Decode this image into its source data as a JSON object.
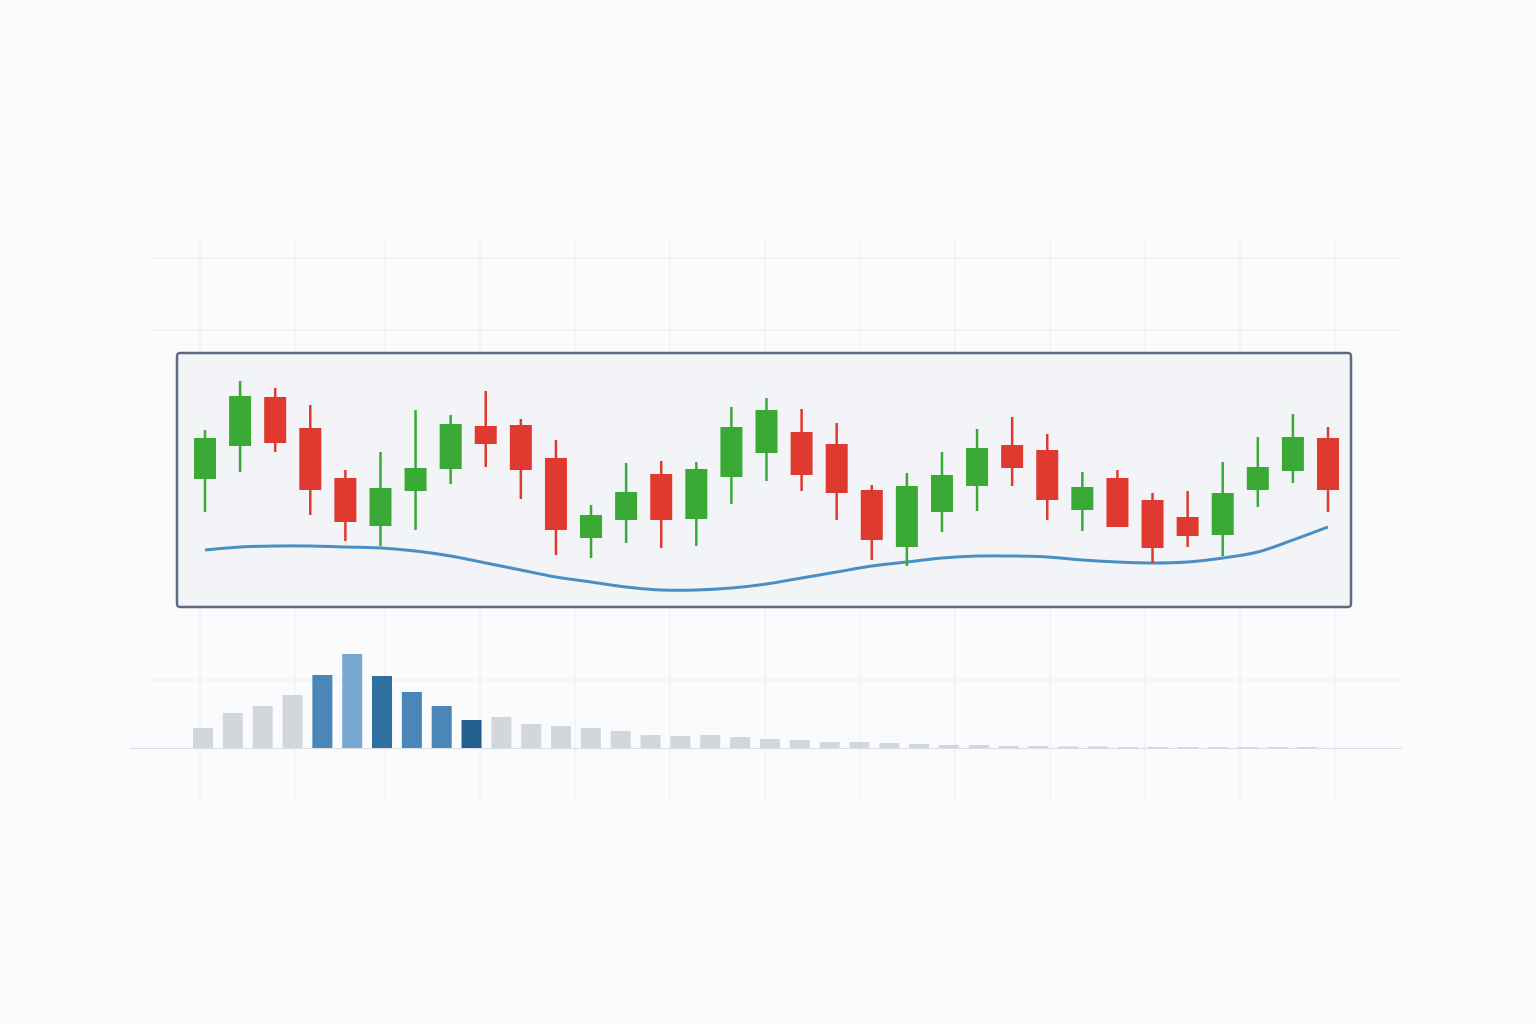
{
  "chart_data": [
    {
      "type": "candlestick",
      "up_color": "#3aa935",
      "down_color": "#e0392f",
      "ylim": [
        0,
        127
      ],
      "open": [
        64,
        80.5,
        105,
        89.5,
        64.5,
        40.5,
        58,
        69,
        90.5,
        91,
        74.5,
        34.5,
        43.5,
        66.5,
        44,
        65,
        77,
        87.5,
        81.5,
        58.5,
        30,
        47.5,
        60.5,
        81,
        78.5,
        48.5,
        64.5,
        53.5,
        45,
        36,
        58.5,
        68,
        84.5
      ],
      "high": [
        88.5,
        113,
        109.5,
        101,
        68.5,
        77.5,
        98.5,
        96,
        108,
        94,
        83.5,
        51,
        72,
        73,
        72.5,
        100,
        104.5,
        99,
        92,
        61,
        67,
        77.5,
        89,
        95,
        86.5,
        67.5,
        68.5,
        57,
        58,
        72.5,
        85,
        96.5,
        90
      ],
      "low": [
        47.5,
        67.5,
        77.5,
        46,
        33,
        30.5,
        38.5,
        61.5,
        70,
        54,
        26,
        24.5,
        32,
        29.5,
        30.5,
        51.5,
        63,
        58,
        43.5,
        23.5,
        20.5,
        37.5,
        48,
        60.5,
        43.5,
        38,
        40,
        22,
        30,
        25.5,
        50,
        62,
        47.5
      ],
      "close": [
        84.5,
        105.5,
        82,
        58.5,
        42.5,
        59.5,
        69.5,
        91.5,
        81.5,
        68.5,
        38.5,
        46,
        57.5,
        43.5,
        69,
        90,
        98.5,
        66,
        57,
        33.5,
        60.5,
        66,
        79.5,
        69.5,
        53.5,
        60,
        40,
        29.5,
        35.5,
        57,
        70,
        85,
        58.5
      ],
      "line": {
        "color": "#4a8fc4",
        "values": [
          28.5,
          30,
          30.5,
          30.5,
          30,
          29.5,
          28,
          25.5,
          22,
          18.5,
          15,
          12.5,
          10,
          8.5,
          8.5,
          9.5,
          11.5,
          14.5,
          17.5,
          20.5,
          22.5,
          24.5,
          25.5,
          25.5,
          25,
          23.5,
          22.5,
          22,
          22.5,
          24.5,
          27.5,
          33.5,
          40
        ]
      }
    },
    {
      "type": "bar",
      "ylim": [
        0,
        100
      ],
      "values": [
        20,
        35,
        42,
        53,
        73,
        94,
        72,
        56,
        42,
        28,
        31,
        24,
        22,
        20,
        17,
        13,
        12,
        13,
        11,
        9,
        8,
        6,
        6,
        5,
        4,
        3,
        3,
        2,
        2,
        1.5,
        1.5,
        1,
        1,
        1,
        1,
        1,
        1,
        1
      ],
      "colors": [
        "#d3d6db",
        "#d3d6db",
        "#d3d6db",
        "#d3d6db",
        "#4a86b8",
        "#78a8cf",
        "#30709f",
        "#4a86b8",
        "#4a86b8",
        "#255f8e",
        "#d3d6db",
        "#d3d6db",
        "#d3d6db",
        "#d3d6db",
        "#d3d6db",
        "#d3d6db",
        "#d3d6db",
        "#d3d6db",
        "#d3d6db",
        "#d3d6db",
        "#d3d6db",
        "#d3d6db",
        "#d3d6db",
        "#d3d6db",
        "#d3d6db",
        "#d3d6db",
        "#d3d6db",
        "#d3d6db",
        "#d3d6db",
        "#d3d6db",
        "#d3d6db",
        "#d3d6db",
        "#d3d6db",
        "#d3d6db",
        "#d3d6db",
        "#d3d6db",
        "#d3d6db",
        "#d3d6db"
      ]
    }
  ]
}
